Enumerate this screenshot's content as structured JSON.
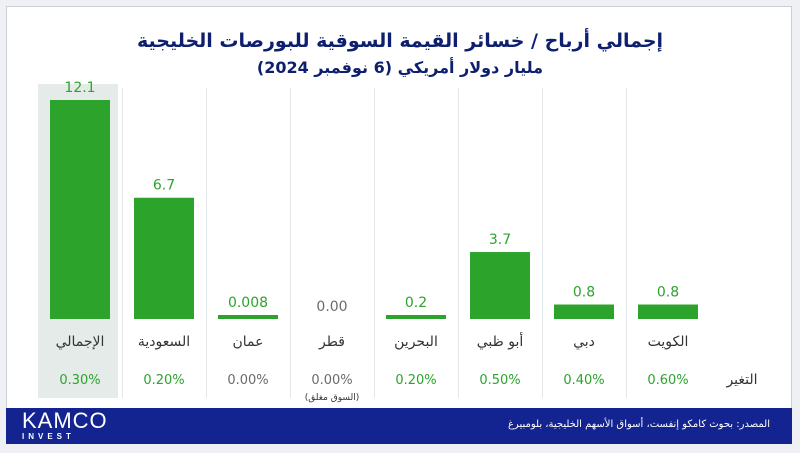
{
  "chart_data": {
    "type": "bar",
    "title": "إجمالي أرباح / خسائر القيمة السوقية للبورصات الخليجية",
    "subtitle": "مليار دولار أمريكي (6 نوفمبر 2024)",
    "categories": [
      "الإجمالي",
      "السعودية",
      "عمان",
      "قطر",
      "البحرين",
      "أبو ظبي",
      "دبي",
      "الكويت"
    ],
    "values": [
      12.1,
      6.7,
      0.008,
      0.0,
      0.2,
      3.7,
      0.8,
      0.8
    ],
    "value_labels": [
      "12.1",
      "6.7",
      "0.008",
      "0.00",
      "0.2",
      "3.7",
      "0.8",
      "0.8"
    ],
    "change_label": "التغير",
    "changes": [
      "0.30%",
      "0.20%",
      "0.00%",
      "0.00%",
      "0.20%",
      "0.50%",
      "0.40%",
      "0.60%"
    ],
    "note": "(السوق مغلق)",
    "ylim": [
      0,
      12.1
    ],
    "colors": {
      "bar": "#2ca42c",
      "positive": "#2ca42c",
      "zero": "#6b6b6b",
      "highlight": "#e4ebe8"
    }
  },
  "footer": {
    "logo_main": "KAMCO",
    "logo_sub": "INVEST",
    "source": "المصدر: بحوث كامكو إنفست، أسواق الأسهم الخليجية، بلومبيرغ"
  }
}
